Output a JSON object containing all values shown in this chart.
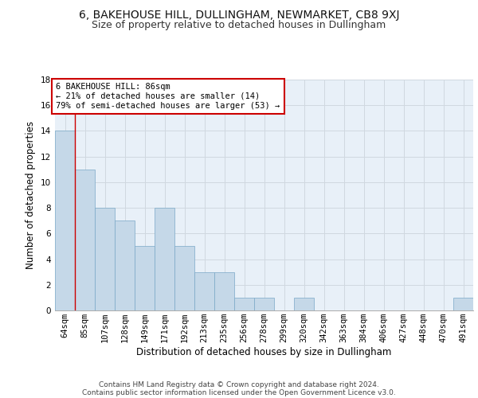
{
  "title": "6, BAKEHOUSE HILL, DULLINGHAM, NEWMARKET, CB8 9XJ",
  "subtitle": "Size of property relative to detached houses in Dullingham",
  "xlabel": "Distribution of detached houses by size in Dullingham",
  "ylabel": "Number of detached properties",
  "categories": [
    "64sqm",
    "85sqm",
    "107sqm",
    "128sqm",
    "149sqm",
    "171sqm",
    "192sqm",
    "213sqm",
    "235sqm",
    "256sqm",
    "278sqm",
    "299sqm",
    "320sqm",
    "342sqm",
    "363sqm",
    "384sqm",
    "406sqm",
    "427sqm",
    "448sqm",
    "470sqm",
    "491sqm"
  ],
  "values": [
    14,
    11,
    8,
    7,
    5,
    8,
    5,
    3,
    3,
    1,
    1,
    0,
    1,
    0,
    0,
    0,
    0,
    0,
    0,
    0,
    1
  ],
  "bar_color": "#c5d8e8",
  "bar_edge_color": "#7aa8c7",
  "vline_x": 0.5,
  "vline_color": "#cc0000",
  "annotation_text": "6 BAKEHOUSE HILL: 86sqm\n← 21% of detached houses are smaller (14)\n79% of semi-detached houses are larger (53) →",
  "annotation_box_color": "#ffffff",
  "annotation_box_edge": "#cc0000",
  "ylim": [
    0,
    18
  ],
  "yticks": [
    0,
    2,
    4,
    6,
    8,
    10,
    12,
    14,
    16,
    18
  ],
  "grid_color": "#d0d8e0",
  "background_color": "#e8f0f8",
  "footer_line1": "Contains HM Land Registry data © Crown copyright and database right 2024.",
  "footer_line2": "Contains public sector information licensed under the Open Government Licence v3.0.",
  "title_fontsize": 10,
  "subtitle_fontsize": 9,
  "xlabel_fontsize": 8.5,
  "ylabel_fontsize": 8.5,
  "tick_fontsize": 7.5,
  "footer_fontsize": 6.5,
  "annotation_fontsize": 7.5
}
